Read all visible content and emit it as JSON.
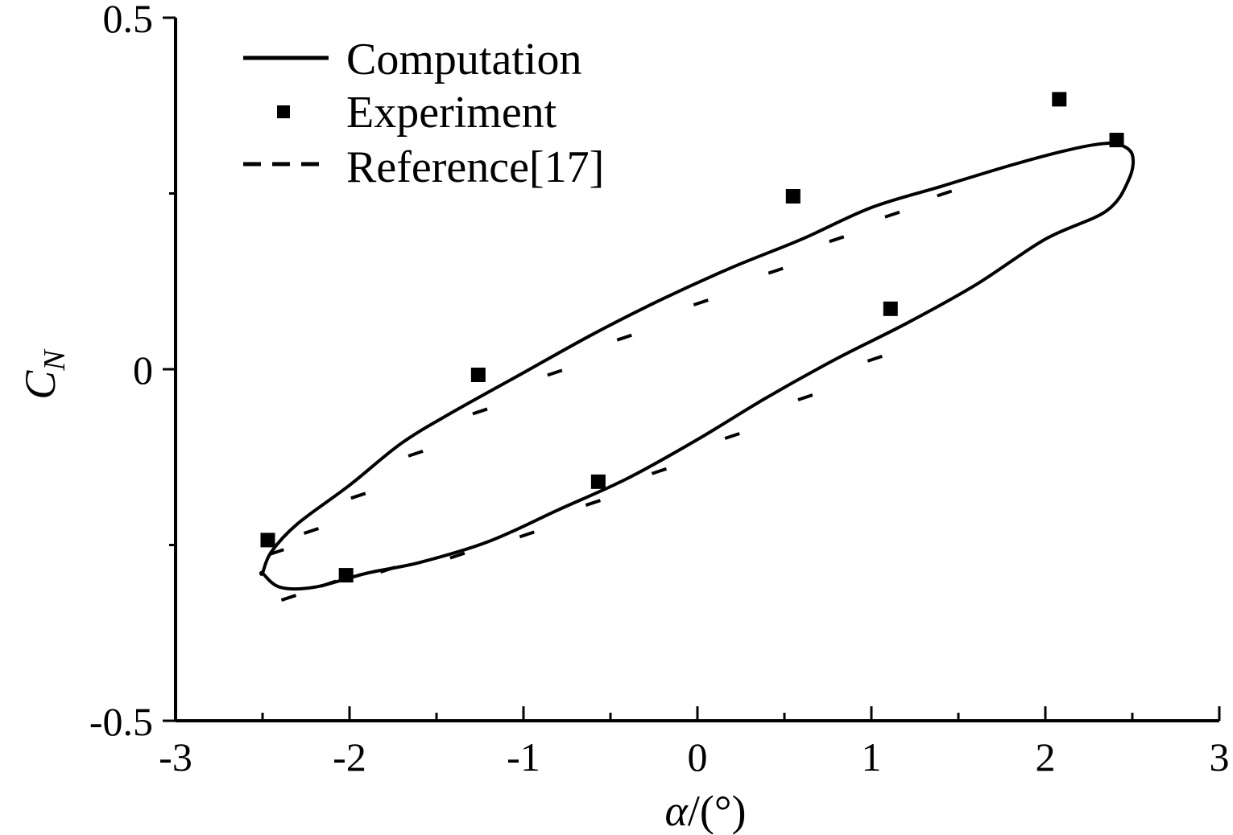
{
  "chart_data": {
    "type": "line",
    "title": "",
    "xlabel": {
      "symbol": "α",
      "rest": "/(°)"
    },
    "ylabel": {
      "symbol": "C",
      "sub": "N"
    },
    "xlim": [
      -3,
      3
    ],
    "ylim": [
      -0.5,
      0.5
    ],
    "xticks": [
      {
        "value": -3,
        "label": "-3"
      },
      {
        "value": -2,
        "label": "-2"
      },
      {
        "value": -1,
        "label": "-1"
      },
      {
        "value": 0,
        "label": "0"
      },
      {
        "value": 1,
        "label": "1"
      },
      {
        "value": 2,
        "label": "2"
      },
      {
        "value": 3,
        "label": "3"
      }
    ],
    "xminor": [
      -2.5,
      -1.5,
      -0.5,
      0.5,
      1.5,
      2.5
    ],
    "yticks": [
      {
        "value": 0.5,
        "label": "0.5"
      },
      {
        "value": 0,
        "label": "0"
      },
      {
        "value": -0.5,
        "label": "-0.5"
      }
    ],
    "yminor": [
      0.25,
      -0.25
    ],
    "grid": false,
    "legend_position": "top-left",
    "series": [
      {
        "name": "Computation",
        "style": "solid",
        "x": [
          -2.5,
          -2.45,
          -2.3,
          -2.0,
          -1.7,
          -1.4,
          -1.0,
          -0.6,
          -0.2,
          0.2,
          0.6,
          1.0,
          1.4,
          1.8,
          2.1,
          2.3,
          2.42,
          2.5,
          2.48,
          2.35,
          2.0,
          1.6,
          1.2,
          0.8,
          0.4,
          0.0,
          -0.4,
          -0.8,
          -1.2,
          -1.6,
          -1.9,
          -2.2,
          -2.4,
          -2.5
        ],
        "y": [
          -0.29,
          -0.26,
          -0.22,
          -0.165,
          -0.105,
          -0.06,
          -0.005,
          0.05,
          0.1,
          0.145,
          0.185,
          0.23,
          0.26,
          0.29,
          0.31,
          0.32,
          0.32,
          0.305,
          0.27,
          0.225,
          0.185,
          0.12,
          0.065,
          0.015,
          -0.04,
          -0.1,
          -0.155,
          -0.2,
          -0.245,
          -0.275,
          -0.29,
          -0.31,
          -0.31,
          -0.29
        ]
      },
      {
        "name": "Experiment",
        "style": "marker",
        "x": [
          -2.47,
          -2.02,
          -1.26,
          -0.57,
          0.55,
          1.11,
          2.08,
          2.41
        ],
        "y": [
          -0.243,
          -0.293,
          -0.008,
          -0.16,
          0.246,
          0.086,
          0.384,
          0.326
        ]
      },
      {
        "name": "Reference[17]",
        "style": "dashed",
        "x": [
          -2.42,
          -2.22,
          -1.95,
          -1.62,
          -1.25,
          -0.82,
          -0.42,
          0.02,
          0.45,
          0.8,
          1.12,
          1.42,
          1.02,
          0.62,
          0.2,
          -0.22,
          -0.6,
          -0.98,
          -1.38,
          -1.78,
          -2.12,
          -2.35
        ],
        "y": [
          -0.26,
          -0.23,
          -0.18,
          -0.12,
          -0.06,
          -0.005,
          0.045,
          0.095,
          0.14,
          0.185,
          0.22,
          0.25,
          0.015,
          -0.04,
          -0.095,
          -0.145,
          -0.19,
          -0.235,
          -0.265,
          -0.285,
          -0.305,
          -0.325
        ]
      }
    ]
  }
}
